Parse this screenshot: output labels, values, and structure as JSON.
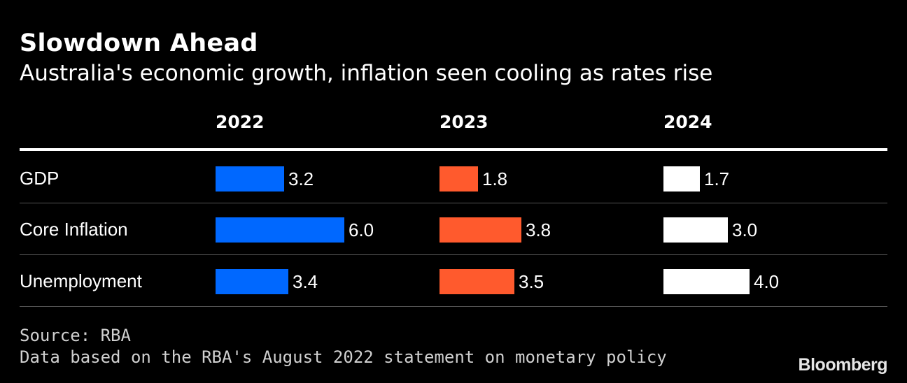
{
  "title": "Slowdown Ahead",
  "subtitle": "Australia's economic growth, inflation seen cooling as rates rise",
  "source": "Source: RBA",
  "note": "Data based on the RBA's August 2022 statement on monetary policy",
  "logo": "Bloomberg",
  "colors": {
    "background": "#000000",
    "2022": "#0068ff",
    "2023": "#ff5a2d",
    "2024": "#ffffff",
    "text": "#ffffff",
    "rule": "#555555"
  },
  "chart_data": {
    "type": "bar",
    "orientation": "horizontal",
    "title": "Slowdown Ahead",
    "subtitle": "Australia's economic growth, inflation seen cooling as rates rise",
    "categories": [
      "GDP",
      "Core Inflation",
      "Unemployment"
    ],
    "series": [
      {
        "name": "2022",
        "values": [
          3.2,
          6.0,
          3.4
        ],
        "labels": [
          "3.2",
          "6.0",
          "3.4"
        ]
      },
      {
        "name": "2023",
        "values": [
          1.8,
          3.8,
          3.5
        ],
        "labels": [
          "1.8",
          "3.8",
          "3.5"
        ]
      },
      {
        "name": "2024",
        "values": [
          1.7,
          3.0,
          4.0
        ],
        "labels": [
          "1.7",
          "3.0",
          "4.0"
        ]
      }
    ],
    "xlim": [
      0,
      6.0
    ],
    "grid": false,
    "legend": "none"
  }
}
